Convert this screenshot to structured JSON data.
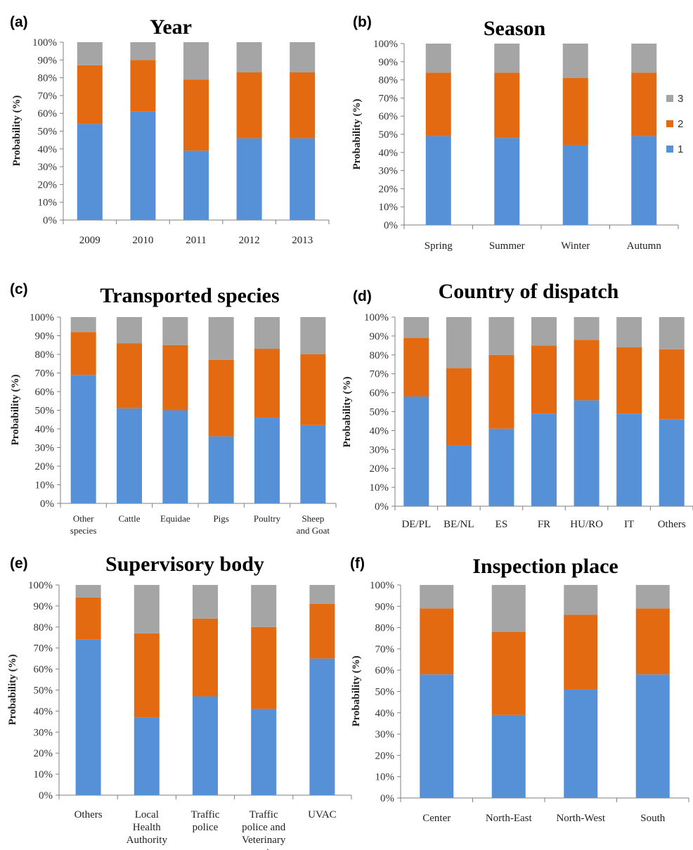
{
  "colors": {
    "1": "#5690d6",
    "2": "#e46a12",
    "3": "#a5a5a5"
  },
  "legend": {
    "items": [
      "3",
      "2",
      "1"
    ]
  },
  "chart_data": [
    {
      "type": "bar",
      "stacked": true,
      "panel": "(a)",
      "title": "Year",
      "ylabel": "Probability (%)",
      "ylim": [
        0,
        100
      ],
      "yticks": [
        "0%",
        "10%",
        "20%",
        "30%",
        "40%",
        "50%",
        "60%",
        "70%",
        "80%",
        "90%",
        "100%"
      ],
      "categories": [
        "2009",
        "2010",
        "2011",
        "2012",
        "2013"
      ],
      "series": [
        {
          "name": "1",
          "values": [
            54,
            61,
            39,
            46,
            46
          ]
        },
        {
          "name": "2",
          "values": [
            33,
            29,
            40,
            37,
            37
          ]
        },
        {
          "name": "3",
          "values": [
            13,
            10,
            21,
            17,
            17
          ]
        }
      ]
    },
    {
      "type": "bar",
      "stacked": true,
      "panel": "(b)",
      "title": "Season",
      "ylabel": "Probability (%)",
      "ylim": [
        0,
        100
      ],
      "yticks": [
        "0%",
        "10%",
        "20%",
        "30%",
        "40%",
        "50%",
        "60%",
        "70%",
        "80%",
        "90%",
        "100%"
      ],
      "categories": [
        "Spring",
        "Summer",
        "Winter",
        "Autumn"
      ],
      "series": [
        {
          "name": "1",
          "values": [
            49,
            48,
            44,
            49
          ]
        },
        {
          "name": "2",
          "values": [
            35,
            36,
            37,
            35
          ]
        },
        {
          "name": "3",
          "values": [
            16,
            16,
            19,
            16
          ]
        }
      ],
      "legend": "right"
    },
    {
      "type": "bar",
      "stacked": true,
      "panel": "(c)",
      "title": "Transported species",
      "ylabel": "Probability (%)",
      "ylim": [
        0,
        100
      ],
      "yticks": [
        "0%",
        "10%",
        "20%",
        "30%",
        "40%",
        "50%",
        "60%",
        "70%",
        "80%",
        "90%",
        "100%"
      ],
      "categories": [
        "Other species",
        "Cattle",
        "Equidae",
        "Pigs",
        "Poultry",
        "Sheep and Goat"
      ],
      "series": [
        {
          "name": "1",
          "values": [
            69,
            51,
            50,
            36,
            46,
            42
          ]
        },
        {
          "name": "2",
          "values": [
            23,
            35,
            35,
            41,
            37,
            38
          ]
        },
        {
          "name": "3",
          "values": [
            8,
            14,
            15,
            23,
            17,
            20
          ]
        }
      ]
    },
    {
      "type": "bar",
      "stacked": true,
      "panel": "(d)",
      "title": "Country of dispatch",
      "ylabel": "Probability (%)",
      "ylim": [
        0,
        100
      ],
      "yticks": [
        "0%",
        "10%",
        "20%",
        "30%",
        "40%",
        "50%",
        "60%",
        "70%",
        "80%",
        "90%",
        "100%"
      ],
      "categories": [
        "DE/PL",
        "BE/NL",
        "ES",
        "FR",
        "HU/RO",
        "IT",
        "Others"
      ],
      "series": [
        {
          "name": "1",
          "values": [
            58,
            32,
            41,
            49,
            56,
            49,
            46
          ]
        },
        {
          "name": "2",
          "values": [
            31,
            41,
            39,
            36,
            32,
            35,
            37
          ]
        },
        {
          "name": "3",
          "values": [
            11,
            27,
            20,
            15,
            12,
            16,
            17
          ]
        }
      ]
    },
    {
      "type": "bar",
      "stacked": true,
      "panel": "(e)",
      "title": "Supervisory body",
      "ylabel": "Probability (%)",
      "ylim": [
        0,
        100
      ],
      "yticks": [
        "0%",
        "10%",
        "20%",
        "30%",
        "40%",
        "50%",
        "60%",
        "70%",
        "80%",
        "90%",
        "100%"
      ],
      "categories": [
        "Others",
        "Local Health Authority",
        "Traffic police",
        "Traffic police and Veterinary service",
        "UVAC"
      ],
      "series": [
        {
          "name": "1",
          "values": [
            74,
            37,
            47,
            41,
            65
          ]
        },
        {
          "name": "2",
          "values": [
            20,
            40,
            37,
            39,
            26
          ]
        },
        {
          "name": "3",
          "values": [
            6,
            23,
            16,
            20,
            9
          ]
        }
      ]
    },
    {
      "type": "bar",
      "stacked": true,
      "panel": "(f)",
      "title": "Inspection place",
      "ylabel": "Probability (%)",
      "ylim": [
        0,
        100
      ],
      "yticks": [
        "0%",
        "10%",
        "20%",
        "30%",
        "40%",
        "50%",
        "60%",
        "70%",
        "80%",
        "90%",
        "100%"
      ],
      "categories": [
        "Center",
        "North-East",
        "North-West",
        "South"
      ],
      "series": [
        {
          "name": "1",
          "values": [
            58,
            39,
            51,
            58
          ]
        },
        {
          "name": "2",
          "values": [
            31,
            39,
            35,
            31
          ]
        },
        {
          "name": "3",
          "values": [
            11,
            22,
            14,
            11
          ]
        }
      ]
    }
  ]
}
